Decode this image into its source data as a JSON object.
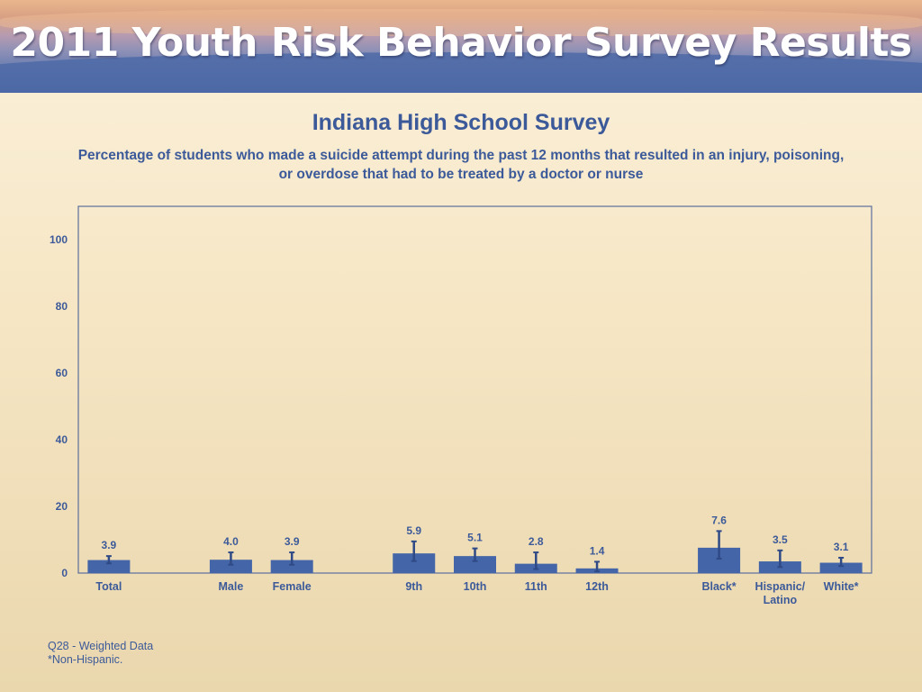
{
  "header": {
    "banner_title": "2011 Youth Risk Behavior Survey Results"
  },
  "colors": {
    "bar": "#4466a8",
    "text": "#3c5a99",
    "error_bar": "#2f4a86"
  },
  "chart_data": {
    "type": "bar",
    "title": "Indiana High School Survey",
    "subtitle": "Percentage of students who made a suicide attempt during the past 12 months that resulted in an injury, poisoning, or overdose that had to be treated by a doctor or nurse",
    "categories": [
      "Total",
      "Male",
      "Female",
      "9th",
      "10th",
      "11th",
      "12th",
      "Black*",
      "Hispanic/\nLatino",
      "White*"
    ],
    "groups": [
      [
        "Total"
      ],
      [
        "Male",
        "Female"
      ],
      [
        "9th",
        "10th",
        "11th",
        "12th"
      ],
      [
        "Black*",
        "Hispanic/\nLatino",
        "White*"
      ]
    ],
    "values": [
      3.9,
      4.0,
      3.9,
      5.9,
      5.1,
      2.8,
      1.4,
      7.6,
      3.5,
      3.1
    ],
    "value_labels": [
      "3.9",
      "4.0",
      "3.9",
      "5.9",
      "5.1",
      "2.8",
      "1.4",
      "7.6",
      "3.5",
      "3.1"
    ],
    "ci_lower": [
      2.9,
      2.5,
      2.5,
      3.6,
      3.6,
      1.2,
      0.5,
      4.3,
      1.8,
      2.1
    ],
    "ci_upper": [
      5.1,
      6.2,
      6.2,
      9.5,
      7.4,
      6.2,
      3.4,
      12.6,
      6.8,
      4.6
    ],
    "ylim": [
      0,
      110
    ],
    "yticks": [
      0,
      20,
      40,
      60,
      80,
      100
    ],
    "ytick_labels": [
      "0",
      "20",
      "40",
      "60",
      "80",
      "100"
    ],
    "xlabel": "",
    "ylabel": "",
    "grid": false
  },
  "footnotes": {
    "line1": "Q28 - Weighted Data",
    "line2": "*Non-Hispanic."
  }
}
